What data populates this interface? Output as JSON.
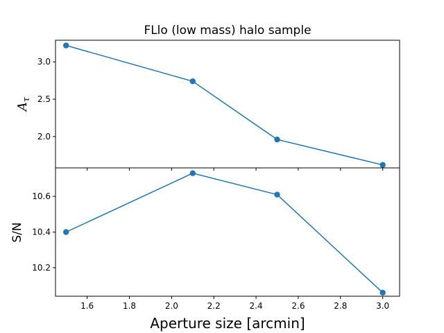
{
  "chart_data": {
    "type": "line",
    "title": "FLlo (low mass) halo sample",
    "xlabel": "Aperture size [arcmin]",
    "xlim": [
      1.45,
      3.08
    ],
    "xticks": [
      "1.6",
      "1.8",
      "2.0",
      "2.2",
      "2.4",
      "2.6",
      "2.8",
      "3.0"
    ],
    "color": "#1f77b4",
    "panels": [
      {
        "ylabel_symbol": "A",
        "ylabel_subscript": "τ",
        "ylim": [
          1.58,
          3.29
        ],
        "yticks": [
          "2.0",
          "2.5",
          "3.0"
        ],
        "series": [
          {
            "x": [
              1.5,
              2.1,
              2.5,
              3.0
            ],
            "y": [
              3.22,
              2.74,
              1.96,
              1.62
            ]
          }
        ]
      },
      {
        "ylabel": "S/N",
        "ylim": [
          10.04,
          10.76
        ],
        "yticks": [
          "10.2",
          "10.4",
          "10.6"
        ],
        "series": [
          {
            "x": [
              1.5,
              2.1,
              2.5,
              3.0
            ],
            "y": [
              10.4,
              10.73,
              10.61,
              10.06
            ]
          }
        ]
      }
    ]
  }
}
